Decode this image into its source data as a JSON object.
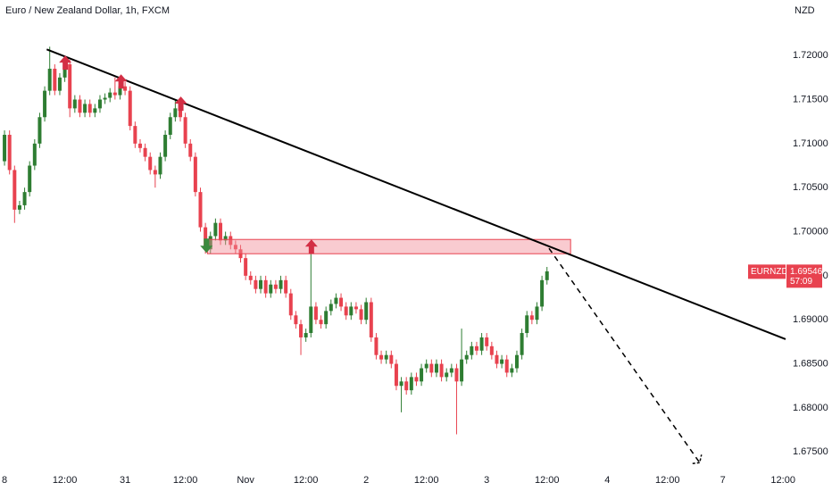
{
  "chart_data": {
    "type": "candlestick",
    "title": "Euro / New Zealand Dollar, 1h, FXCM",
    "y_axis_label": "NZD",
    "symbol": "EURNZD",
    "last_price": 1.69546,
    "countdown": "57:09",
    "up_color": "#2e7d32",
    "down_color": "#e8424f",
    "xlim": [
      -0.9,
      155.5
    ],
    "ylim": [
      1.6731,
      1.7263
    ],
    "xticks": [
      {
        "value": 0,
        "label": "8"
      },
      {
        "value": 12,
        "label": "12:00"
      },
      {
        "value": 24,
        "label": "31"
      },
      {
        "value": 36,
        "label": "12:00"
      },
      {
        "value": 48,
        "label": "Nov"
      },
      {
        "value": 60,
        "label": "12:00"
      },
      {
        "value": 72,
        "label": "2"
      },
      {
        "value": 84,
        "label": "12:00"
      },
      {
        "value": 96,
        "label": "3"
      },
      {
        "value": 108,
        "label": "12:00"
      },
      {
        "value": 120,
        "label": "4"
      },
      {
        "value": 132,
        "label": "12:00"
      },
      {
        "value": 143,
        "label": "7"
      },
      {
        "value": 155,
        "label": "12:00"
      }
    ],
    "yticks": [
      {
        "value": 1.72,
        "label": "1.72000"
      },
      {
        "value": 1.715,
        "label": "1.71500"
      },
      {
        "value": 1.71,
        "label": "1.71000"
      },
      {
        "value": 1.705,
        "label": "1.70500"
      },
      {
        "value": 1.7,
        "label": "1.70000"
      },
      {
        "value": 1.695,
        "label": "1.69500"
      },
      {
        "value": 1.69,
        "label": "1.69000"
      },
      {
        "value": 1.685,
        "label": "1.68500"
      },
      {
        "value": 1.68,
        "label": "1.68000"
      },
      {
        "value": 1.675,
        "label": "1.67500"
      }
    ],
    "x": [
      0,
      1,
      2,
      3,
      4,
      5,
      6,
      7,
      8,
      9,
      10,
      11,
      12,
      13,
      14,
      15,
      16,
      17,
      18,
      19,
      20,
      21,
      22,
      23,
      24,
      25,
      26,
      27,
      28,
      29,
      30,
      31,
      32,
      33,
      34,
      35,
      36,
      37,
      38,
      39,
      40,
      41,
      42,
      43,
      44,
      45,
      46,
      47,
      48,
      49,
      50,
      51,
      52,
      53,
      54,
      55,
      56,
      57,
      58,
      59,
      60,
      61,
      62,
      63,
      64,
      65,
      66,
      67,
      68,
      69,
      70,
      71,
      72,
      73,
      74,
      75,
      76,
      77,
      78,
      79,
      80,
      81,
      82,
      83,
      84,
      85,
      86,
      87,
      88,
      89,
      90,
      91,
      92,
      93,
      94,
      95,
      96,
      97,
      98,
      99,
      100,
      101,
      102,
      103,
      104,
      105,
      106,
      107,
      108
    ],
    "open": [
      1.708,
      1.711,
      1.707,
      1.7025,
      1.703,
      1.7045,
      1.7075,
      1.71,
      1.713,
      1.716,
      1.7185,
      1.716,
      1.7175,
      1.719,
      1.714,
      1.715,
      1.7135,
      1.7145,
      1.7135,
      1.714,
      1.715,
      1.7152,
      1.7158,
      1.7155,
      1.7165,
      1.716,
      1.712,
      1.71,
      1.7095,
      1.7085,
      1.707,
      1.7065,
      1.7085,
      1.711,
      1.713,
      1.714,
      1.713,
      1.71,
      1.7085,
      1.7045,
      1.7005,
      1.698,
      1.6995,
      1.701,
      1.699,
      1.6995,
      1.6985,
      1.698,
      1.697,
      1.695,
      1.6945,
      1.6935,
      1.6945,
      1.693,
      1.694,
      1.6935,
      1.6945,
      1.693,
      1.6905,
      1.6895,
      1.688,
      1.6885,
      1.6915,
      1.69,
      1.6895,
      1.691,
      1.6918,
      1.6925,
      1.6915,
      1.6905,
      1.6915,
      1.6912,
      1.69,
      1.692,
      1.688,
      1.686,
      1.6855,
      1.686,
      1.685,
      1.6825,
      1.683,
      1.682,
      1.6835,
      1.683,
      1.6845,
      1.685,
      1.684,
      1.685,
      1.6835,
      1.684,
      1.6845,
      1.683,
      1.6855,
      1.686,
      1.687,
      1.6865,
      1.688,
      1.687,
      1.686,
      1.685,
      1.6855,
      1.684,
      1.6845,
      1.686,
      1.6885,
      1.6905,
      1.69,
      1.6915,
      1.6945
    ],
    "high": [
      1.7115,
      1.7115,
      1.7075,
      1.7035,
      1.705,
      1.708,
      1.7105,
      1.7135,
      1.7165,
      1.721,
      1.719,
      1.718,
      1.7195,
      1.7195,
      1.7155,
      1.7155,
      1.715,
      1.715,
      1.7145,
      1.7155,
      1.7157,
      1.7163,
      1.7175,
      1.717,
      1.717,
      1.7165,
      1.7125,
      1.7105,
      1.71,
      1.709,
      1.7075,
      1.709,
      1.7115,
      1.7135,
      1.715,
      1.7145,
      1.7135,
      1.7105,
      1.709,
      1.705,
      1.701,
      1.7,
      1.7015,
      1.7015,
      1.7,
      1.7,
      1.699,
      1.6985,
      1.6975,
      1.6955,
      1.695,
      1.695,
      1.695,
      1.6945,
      1.6945,
      1.695,
      1.695,
      1.6935,
      1.691,
      1.69,
      1.689,
      1.6975,
      1.692,
      1.6905,
      1.6915,
      1.6923,
      1.693,
      1.693,
      1.692,
      1.692,
      1.692,
      1.6917,
      1.6925,
      1.6925,
      1.6885,
      1.6865,
      1.6865,
      1.6865,
      1.6855,
      1.6835,
      1.6835,
      1.684,
      1.684,
      1.685,
      1.6855,
      1.6855,
      1.6855,
      1.6855,
      1.6845,
      1.685,
      1.685,
      1.689,
      1.6865,
      1.6875,
      1.6875,
      1.6885,
      1.6885,
      1.6875,
      1.6865,
      1.686,
      1.686,
      1.685,
      1.6865,
      1.689,
      1.691,
      1.691,
      1.692,
      1.695,
      1.696
    ],
    "low": [
      1.7075,
      1.7065,
      1.701,
      1.702,
      1.7025,
      1.704,
      1.707,
      1.7095,
      1.7125,
      1.7155,
      1.7155,
      1.7155,
      1.717,
      1.713,
      1.7135,
      1.713,
      1.713,
      1.713,
      1.713,
      1.7135,
      1.7145,
      1.7147,
      1.715,
      1.715,
      1.7155,
      1.7115,
      1.7095,
      1.709,
      1.708,
      1.7065,
      1.705,
      1.706,
      1.708,
      1.7105,
      1.7125,
      1.7125,
      1.7095,
      1.708,
      1.704,
      1.7,
      1.6975,
      1.6975,
      1.699,
      1.6985,
      1.6985,
      1.698,
      1.6975,
      1.6965,
      1.6945,
      1.694,
      1.693,
      1.693,
      1.6925,
      1.6925,
      1.693,
      1.693,
      1.6925,
      1.69,
      1.689,
      1.686,
      1.6875,
      1.688,
      1.6895,
      1.689,
      1.689,
      1.6905,
      1.6913,
      1.691,
      1.69,
      1.69,
      1.6907,
      1.6895,
      1.6895,
      1.6875,
      1.6855,
      1.685,
      1.685,
      1.6845,
      1.682,
      1.6795,
      1.6815,
      1.6815,
      1.6825,
      1.6825,
      1.684,
      1.6835,
      1.6835,
      1.683,
      1.683,
      1.6835,
      1.677,
      1.6825,
      1.685,
      1.6855,
      1.686,
      1.686,
      1.6865,
      1.6855,
      1.6845,
      1.6845,
      1.6835,
      1.6835,
      1.684,
      1.6855,
      1.688,
      1.6895,
      1.6895,
      1.691,
      1.694
    ],
    "close": [
      1.711,
      1.707,
      1.7025,
      1.703,
      1.7045,
      1.7075,
      1.71,
      1.713,
      1.716,
      1.7185,
      1.716,
      1.7175,
      1.719,
      1.714,
      1.715,
      1.7135,
      1.7145,
      1.7135,
      1.714,
      1.715,
      1.7152,
      1.7158,
      1.7155,
      1.7165,
      1.716,
      1.712,
      1.71,
      1.7095,
      1.7085,
      1.707,
      1.7065,
      1.7085,
      1.711,
      1.713,
      1.714,
      1.713,
      1.71,
      1.7085,
      1.7045,
      1.7005,
      1.698,
      1.6995,
      1.701,
      1.699,
      1.6995,
      1.6985,
      1.698,
      1.697,
      1.695,
      1.6945,
      1.6935,
      1.6945,
      1.693,
      1.694,
      1.6935,
      1.6945,
      1.693,
      1.6905,
      1.6895,
      1.688,
      1.6885,
      1.6915,
      1.69,
      1.6895,
      1.691,
      1.6918,
      1.6925,
      1.6915,
      1.6905,
      1.6915,
      1.6912,
      1.69,
      1.692,
      1.688,
      1.686,
      1.6855,
      1.686,
      1.685,
      1.6825,
      1.683,
      1.682,
      1.6835,
      1.683,
      1.6845,
      1.685,
      1.684,
      1.685,
      1.6835,
      1.684,
      1.6845,
      1.683,
      1.6855,
      1.686,
      1.687,
      1.6865,
      1.688,
      1.687,
      1.686,
      1.685,
      1.6855,
      1.684,
      1.6845,
      1.686,
      1.6885,
      1.6905,
      1.69,
      1.6915,
      1.6945,
      1.6955
    ],
    "trend_line": {
      "x": [
        8.4,
        155.5
      ],
      "y": [
        1.7207,
        1.6878
      ],
      "color": "#000000"
    },
    "zone": {
      "x": [
        40.4,
        112.7
      ],
      "y": [
        1.69912,
        1.6975
      ],
      "color": "#f28b96"
    },
    "projection": {
      "x": [
        108.4,
        138.4
      ],
      "y": [
        1.69811,
        1.67378
      ],
      "color": "#000000"
    },
    "markers": [
      {
        "x": 12.1,
        "y": 1.72,
        "direction": "down",
        "color": "#d32f45"
      },
      {
        "x": 23.2,
        "y": 1.71787,
        "direction": "down",
        "color": "#d32f45"
      },
      {
        "x": 35.1,
        "y": 1.71534,
        "direction": "down",
        "color": "#d32f45"
      },
      {
        "x": 61.1,
        "y": 1.69912,
        "direction": "down",
        "color": "#d32f45"
      },
      {
        "x": 40.2,
        "y": 1.6976,
        "direction": "up",
        "color": "#3a8a3e"
      }
    ]
  }
}
